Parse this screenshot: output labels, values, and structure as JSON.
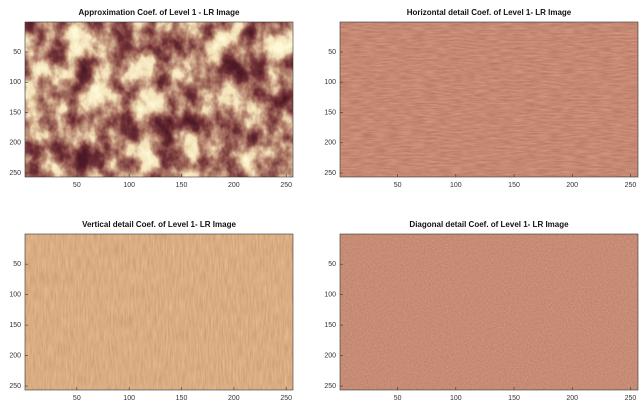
{
  "chart_data": [
    {
      "type": "image",
      "title": "Approximation Coef. of Level 1 - LR Image",
      "xlim": [
        0.5,
        256.5
      ],
      "ylim": [
        256.5,
        0.5
      ],
      "xticks": [
        50,
        100,
        150,
        200,
        250
      ],
      "yticks": [
        50,
        100,
        150,
        200,
        250
      ]
    },
    {
      "type": "image",
      "title": "Horizontal detail Coef. of Level 1- LR Image",
      "xlim": [
        0.5,
        256.5
      ],
      "ylim": [
        256.5,
        0.5
      ],
      "xticks": [
        50,
        100,
        150,
        200,
        250
      ],
      "yticks": [
        50,
        100,
        150,
        200,
        250
      ]
    },
    {
      "type": "image",
      "title": "Vertical detail Coef. of Level 1- LR Image",
      "xlim": [
        0.5,
        256.5
      ],
      "ylim": [
        256.5,
        0.5
      ],
      "xticks": [
        50,
        100,
        150,
        200,
        250
      ],
      "yticks": [
        50,
        100,
        150,
        200,
        250
      ]
    },
    {
      "type": "image",
      "title": "Diagonal detail Coef. of Level 1- LR Image",
      "xlim": [
        0.5,
        256.5
      ],
      "ylim": [
        256.5,
        0.5
      ],
      "xticks": [
        50,
        100,
        150,
        200,
        250
      ],
      "yticks": [
        50,
        100,
        150,
        200,
        250
      ]
    }
  ]
}
